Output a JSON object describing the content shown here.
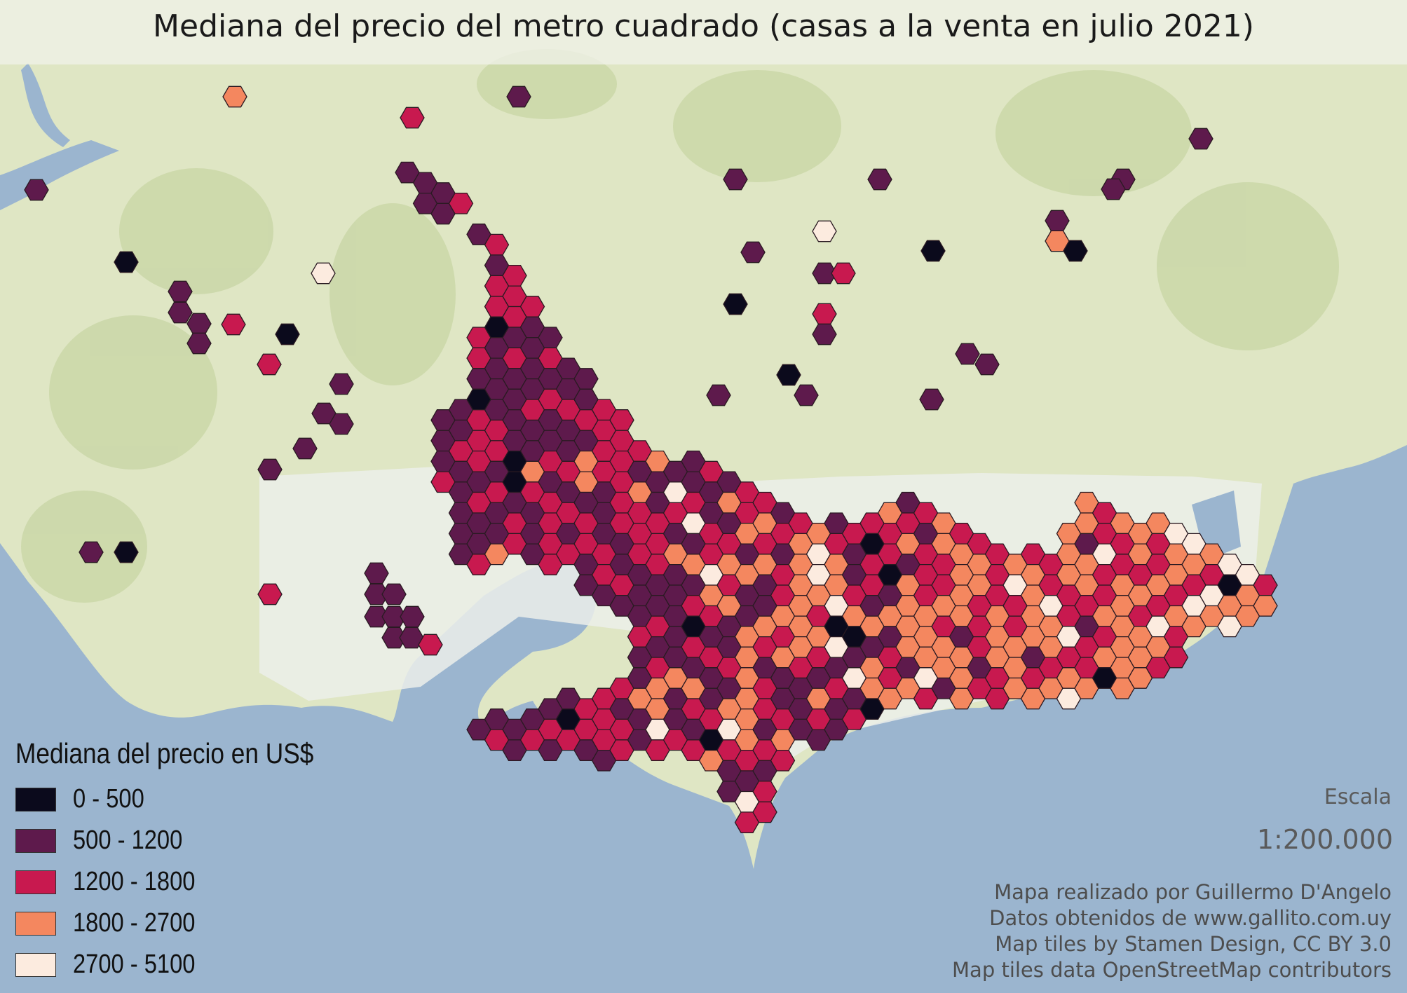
{
  "title": "Mediana del precio del metro cuadrado (casas a la venta en julio 2021)",
  "legend": {
    "title": "Mediana del precio en US$",
    "items": [
      {
        "label": "0 - 500",
        "color": "#0b0a1c"
      },
      {
        "label": "500 - 1200",
        "color": "#5e1a4c"
      },
      {
        "label": "1200 - 1800",
        "color": "#c8194f"
      },
      {
        "label": "1800 - 2700",
        "color": "#f4875f"
      },
      {
        "label": "2700 - 5100",
        "color": "#fcebdf"
      }
    ]
  },
  "scale": {
    "title": "Escala",
    "value": "1:200.000"
  },
  "credits": [
    "Mapa realizado por Guillermo D'Angelo",
    "Datos obtenidos de www.gallito.com.uy",
    "Map tiles by Stamen Design, CC BY 3.0",
    "Map tiles data OpenStreetMap contributors"
  ],
  "colors": {
    "water": "#9bb5cf",
    "land": "#dfe6c4",
    "park": "#bfcf99",
    "urban": "#eceeea"
  }
}
